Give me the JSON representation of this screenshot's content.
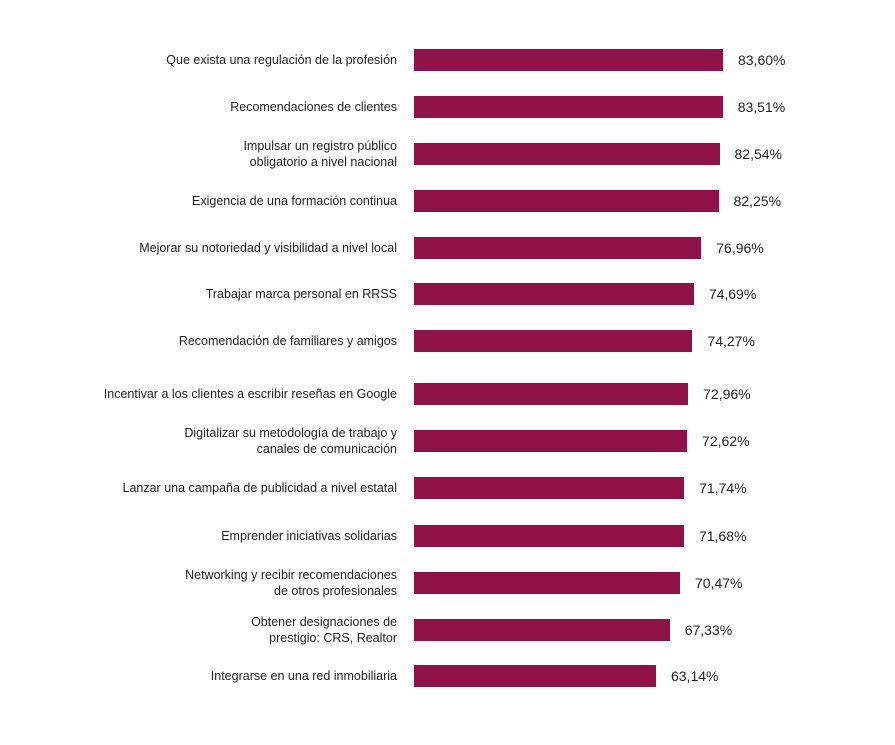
{
  "chart_data": {
    "type": "bar",
    "orientation": "horizontal",
    "title": "",
    "xlabel": "",
    "ylabel": "",
    "bar_color": "#8e1148",
    "categories": [
      "Que exista una regulación de la profesión",
      "Recomendaciones de clientes",
      "Impulsar un registro público\nobligatorio a nivel nacional",
      "Exigencia de una formación continua",
      "Mejorar su notoriedad y visibilidad a nivel local",
      "Trabajar marca personal en RRSS",
      "Recomendación de familiares y amigos",
      "Incentivar a los clientes a escribir reseñas en Google",
      "Digitalizar su metodología de trabajo y\ncanales de comunicación",
      "Lanzar una campaña de publicidad a nivel estatal",
      "Emprender iniciativas solidarias",
      "Networking y recibir recomendaciones\nde otros profesionales",
      "Obtener designaciones de\nprestigio: CRS, Realtor",
      "Integrarse en una red inmobiliaria"
    ],
    "values": [
      83.6,
      83.51,
      82.54,
      82.25,
      76.96,
      74.69,
      74.27,
      72.96,
      72.62,
      71.74,
      71.68,
      70.47,
      67.33,
      63.14
    ],
    "value_labels": [
      "83,60%",
      "83,51%",
      "82,54%",
      "82,25%",
      "76,96%",
      "74,69%",
      "74,27%",
      "72,96%",
      "72,62%",
      "71,74%",
      "71,68%",
      "70,47%",
      "67,33%",
      "63,14%"
    ]
  }
}
